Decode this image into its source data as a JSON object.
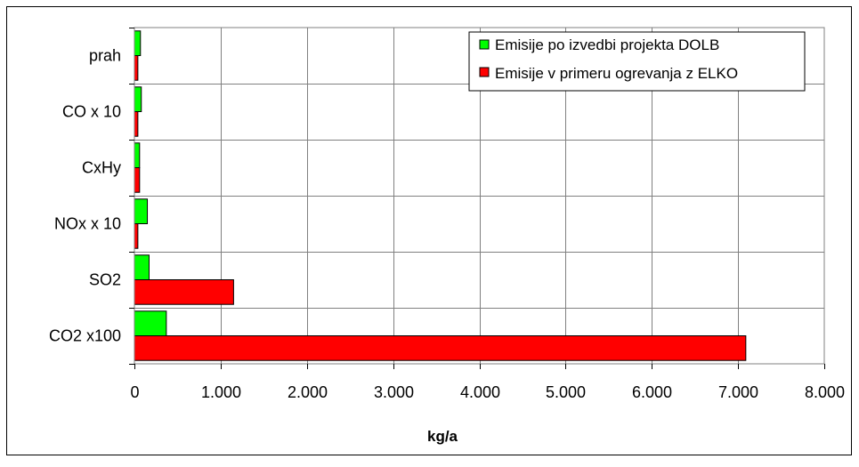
{
  "chart_data": {
    "type": "bar",
    "orientation": "horizontal",
    "categories": [
      "prah",
      "CO x 10",
      "CxHy",
      "NOx x 10",
      "SO2",
      "CO2 x100"
    ],
    "series": [
      {
        "name": "Emisije po izvedbi projekta DOLB",
        "color": "#00ff00",
        "values": [
          70,
          80,
          60,
          150,
          170,
          370
        ]
      },
      {
        "name": "Emisije v primeru ogrevanja z ELKO",
        "color": "#ff0000",
        "values": [
          40,
          40,
          60,
          40,
          1150,
          7090
        ]
      }
    ],
    "xlabel": "kg/a",
    "ylabel": "",
    "title": "",
    "xlim": [
      0,
      8000
    ],
    "x_ticks": [
      0,
      1000,
      2000,
      3000,
      4000,
      5000,
      6000,
      7000,
      8000
    ],
    "x_tick_labels": [
      "0",
      "1.000",
      "2.000",
      "3.000",
      "4.000",
      "5.000",
      "6.000",
      "7.000",
      "8.000"
    ],
    "grid": "vertical major gridlines",
    "legend_position": "top-right"
  }
}
